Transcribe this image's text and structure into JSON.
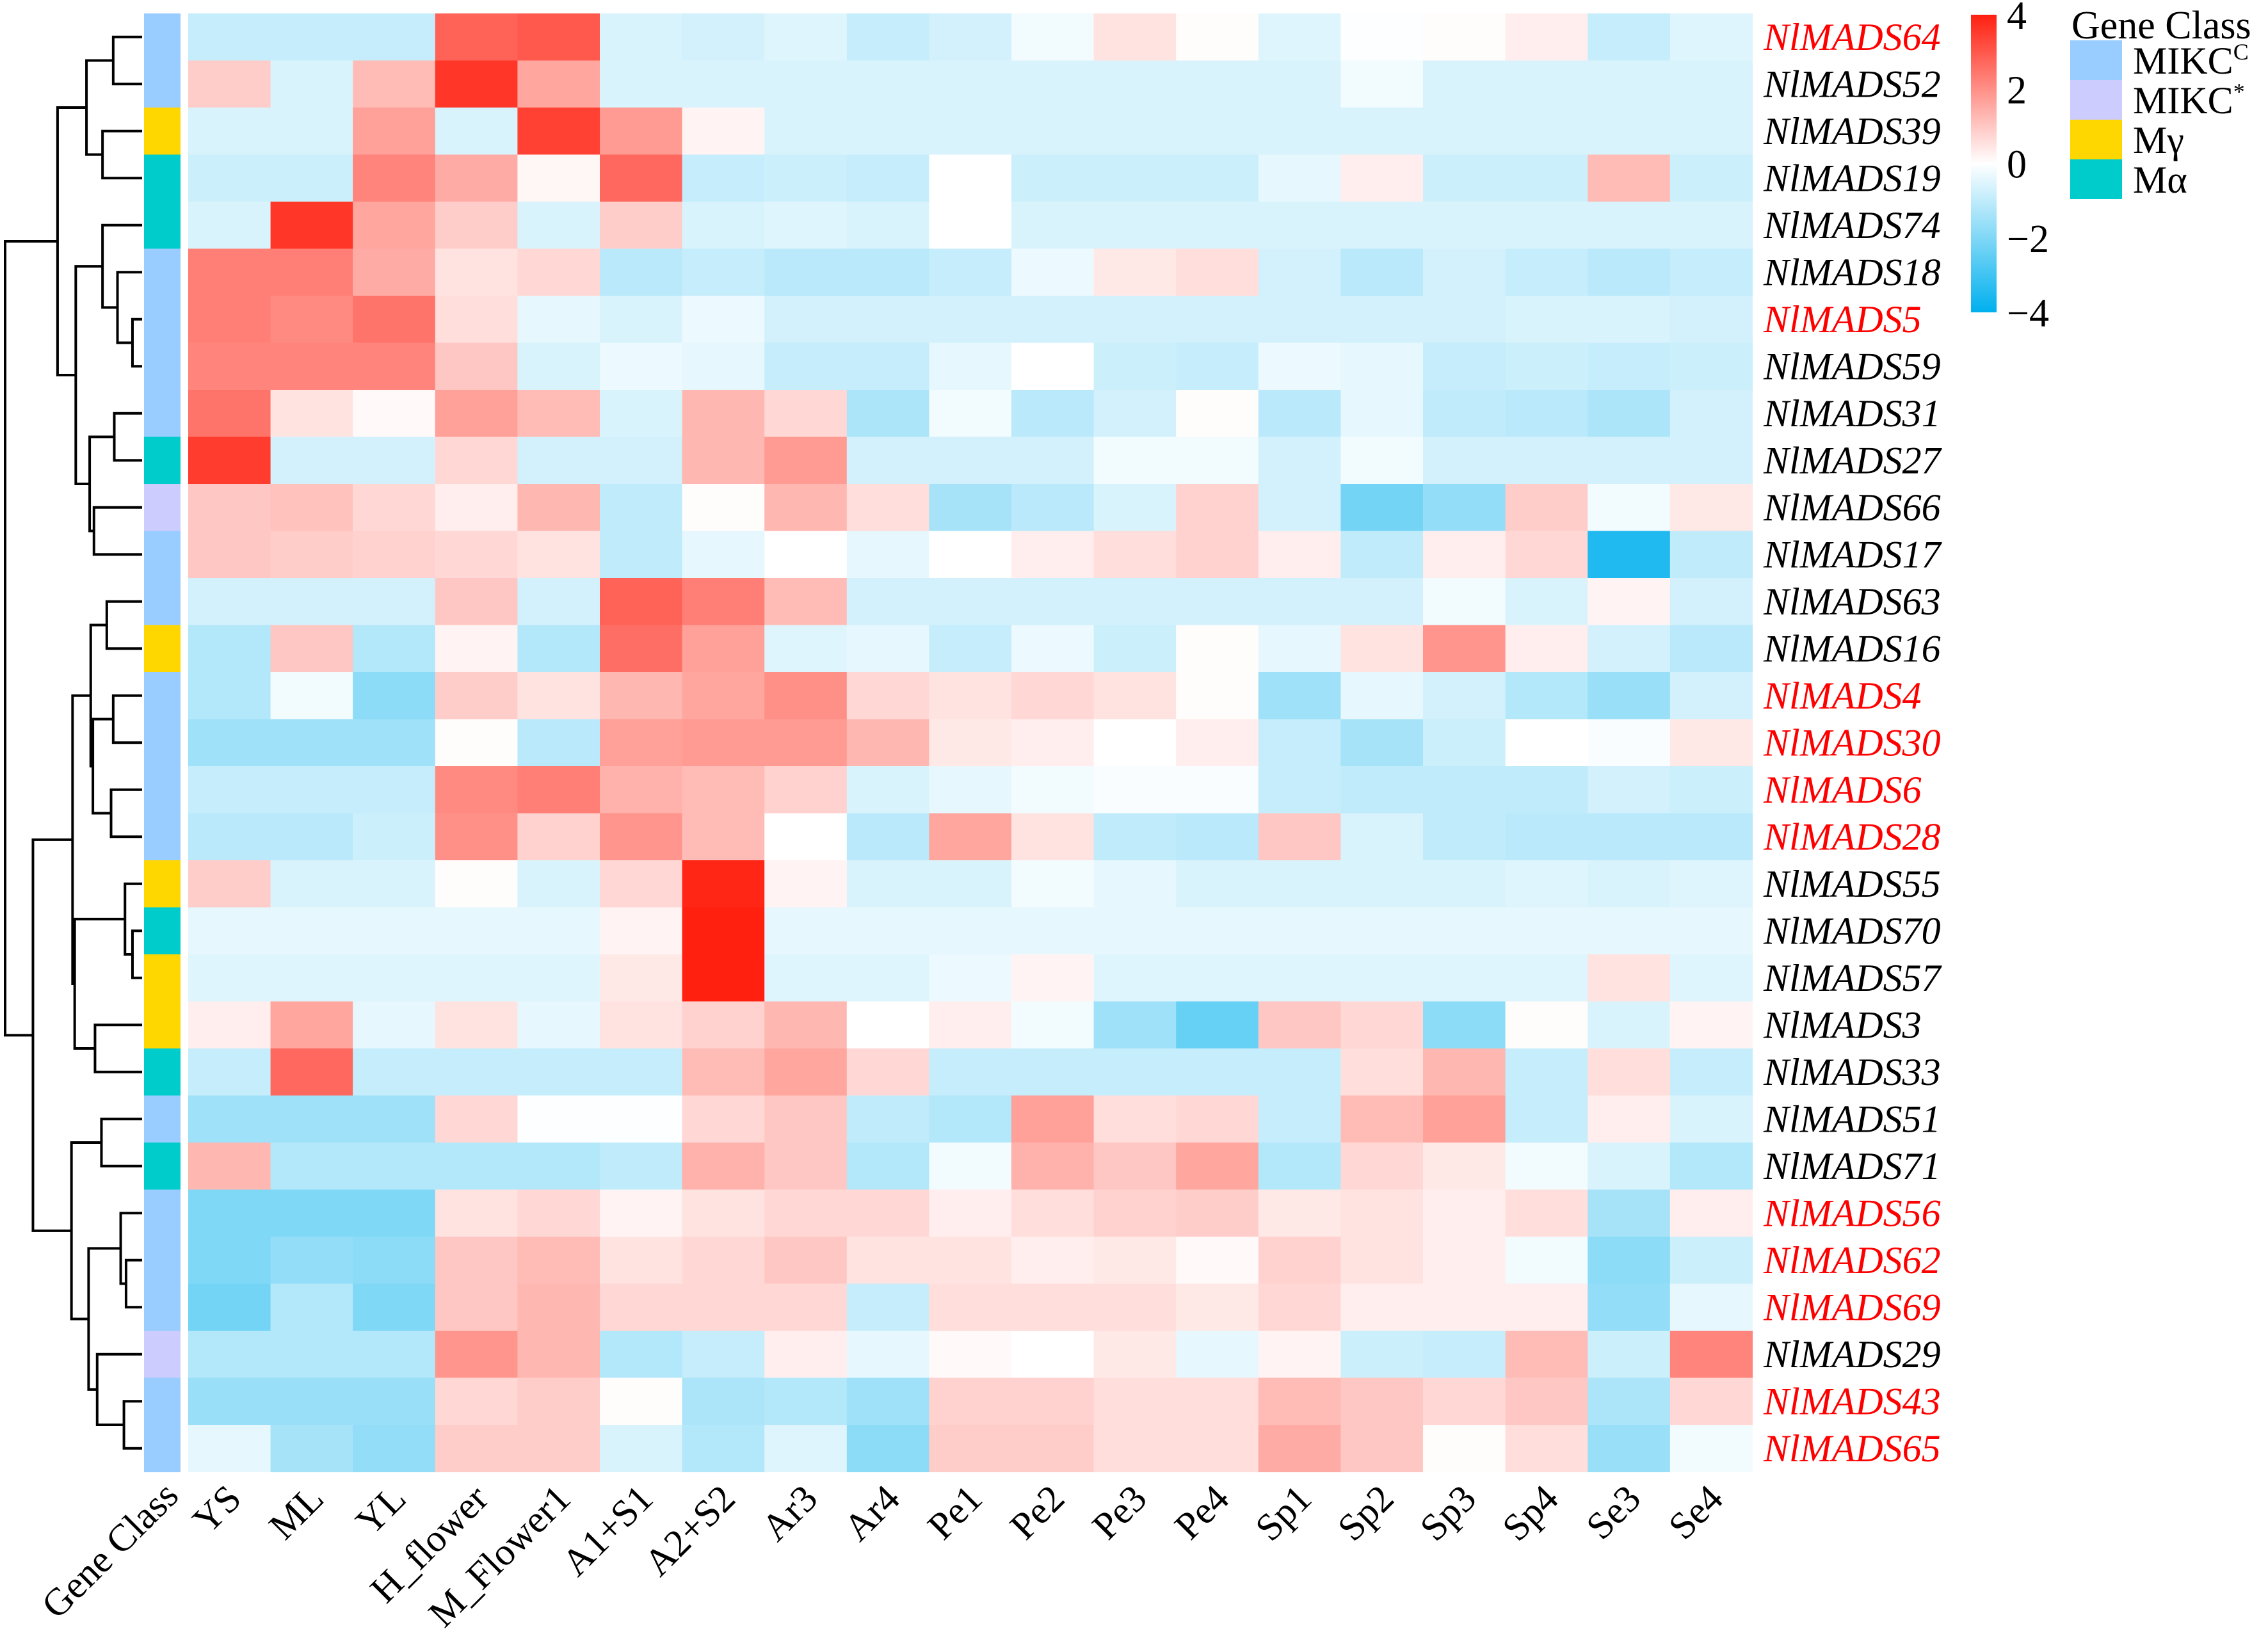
{
  "chart_data": {
    "type": "heatmap",
    "title": "",
    "columns": [
      "YS",
      "ML",
      "YL",
      "H_flower",
      "M_Flower1",
      "A1+S1",
      "A2+S2",
      "Ar3",
      "Ar4",
      "Pe1",
      "Pe2",
      "Pe3",
      "Pe4",
      "Sp1",
      "Sp2",
      "Sp3",
      "Sp4",
      "Se3",
      "Se4"
    ],
    "rows": [
      {
        "gene": "NlMADS64",
        "highlight": true,
        "class": "MIKCC",
        "values": [
          -0.9,
          -0.9,
          -0.9,
          2.8,
          3.0,
          -0.6,
          -0.7,
          -0.5,
          -0.9,
          -0.7,
          -0.2,
          0.5,
          0.05,
          -0.5,
          -0.05,
          0.05,
          0.3,
          -0.9,
          -0.5
        ]
      },
      {
        "gene": "NlMADS52",
        "highlight": false,
        "class": "MIKCC",
        "values": [
          0.9,
          -0.6,
          1.2,
          3.6,
          1.6,
          -0.6,
          -0.6,
          -0.6,
          -0.6,
          -0.6,
          -0.6,
          -0.6,
          -0.6,
          -0.6,
          -0.2,
          -0.6,
          -0.6,
          -0.6,
          -0.6
        ]
      },
      {
        "gene": "NlMADS39",
        "highlight": false,
        "class": "Mgamma",
        "values": [
          -0.6,
          -0.6,
          1.7,
          -0.6,
          3.4,
          1.8,
          0.2,
          -0.6,
          -0.6,
          -0.6,
          -0.6,
          -0.6,
          -0.6,
          -0.6,
          -0.6,
          -0.6,
          -0.6,
          -0.6,
          -0.6
        ]
      },
      {
        "gene": "NlMADS19",
        "highlight": false,
        "class": "Malpha",
        "values": [
          -0.8,
          -0.8,
          2.2,
          1.5,
          0.15,
          2.7,
          -0.9,
          -0.8,
          -0.9,
          0.0,
          -0.8,
          -0.8,
          -0.8,
          -0.4,
          0.3,
          -0.8,
          -0.8,
          1.2,
          -0.8
        ]
      },
      {
        "gene": "NlMADS74",
        "highlight": false,
        "class": "Malpha",
        "values": [
          -0.6,
          3.6,
          1.6,
          0.9,
          -0.6,
          0.9,
          -0.6,
          -0.5,
          -0.6,
          0.0,
          -0.6,
          -0.6,
          -0.6,
          -0.6,
          -0.6,
          -0.6,
          -0.6,
          -0.6,
          -0.6
        ]
      },
      {
        "gene": "NlMADS18",
        "highlight": false,
        "class": "MIKCC",
        "values": [
          2.3,
          2.3,
          1.5,
          0.5,
          0.7,
          -1.1,
          -0.9,
          -1.1,
          -1.1,
          -0.9,
          -0.3,
          0.4,
          0.6,
          -0.7,
          -1.1,
          -0.7,
          -0.9,
          -1.1,
          -0.9
        ]
      },
      {
        "gene": "NlMADS5",
        "highlight": true,
        "class": "MIKCC",
        "values": [
          2.3,
          2.1,
          2.5,
          0.6,
          -0.4,
          -0.6,
          -0.3,
          -0.7,
          -0.7,
          -0.7,
          -0.7,
          -0.7,
          -0.7,
          -0.7,
          -0.7,
          -0.7,
          -0.6,
          -0.6,
          -0.7
        ]
      },
      {
        "gene": "NlMADS59",
        "highlight": false,
        "class": "MIKCC",
        "values": [
          2.2,
          2.2,
          2.2,
          1.0,
          -0.6,
          -0.3,
          -0.4,
          -0.9,
          -0.9,
          -0.4,
          0.0,
          -0.8,
          -0.9,
          -0.3,
          -0.4,
          -0.9,
          -0.8,
          -0.9,
          -0.8
        ]
      },
      {
        "gene": "NlMADS31",
        "highlight": false,
        "class": "MIKCC",
        "values": [
          2.5,
          0.5,
          0.1,
          1.7,
          1.2,
          -0.6,
          1.3,
          0.7,
          -1.3,
          -0.2,
          -1.1,
          -0.7,
          0.05,
          -1.1,
          -0.4,
          -1.0,
          -1.1,
          -1.3,
          -0.7
        ]
      },
      {
        "gene": "NlMADS27",
        "highlight": false,
        "class": "Malpha",
        "values": [
          3.5,
          -0.7,
          -0.7,
          0.7,
          -0.7,
          -0.7,
          1.3,
          1.8,
          -0.7,
          -0.7,
          -0.7,
          -0.2,
          -0.2,
          -0.7,
          -0.2,
          -0.7,
          -0.7,
          -0.7,
          -0.7
        ]
      },
      {
        "gene": "NlMADS66",
        "highlight": false,
        "class": "MIKCstar",
        "values": [
          1.0,
          1.1,
          0.7,
          0.3,
          1.3,
          -1.0,
          0.05,
          1.3,
          0.6,
          -1.4,
          -1.1,
          -0.6,
          0.8,
          -0.7,
          -2.2,
          -1.7,
          0.9,
          -0.2,
          0.4
        ]
      },
      {
        "gene": "NlMADS17",
        "highlight": false,
        "class": "MIKCC",
        "values": [
          1.0,
          0.9,
          0.8,
          0.7,
          0.5,
          -1.0,
          -0.4,
          0.0,
          -0.4,
          0.0,
          0.3,
          0.6,
          0.8,
          0.3,
          -1.0,
          0.3,
          0.7,
          -3.5,
          -1.0
        ]
      },
      {
        "gene": "NlMADS63",
        "highlight": false,
        "class": "MIKCC",
        "values": [
          -0.7,
          -0.7,
          -0.7,
          1.0,
          -0.7,
          2.8,
          2.3,
          1.2,
          -0.7,
          -0.7,
          -0.7,
          -0.7,
          -0.7,
          -0.7,
          -0.7,
          -0.2,
          -0.6,
          0.2,
          -0.7
        ]
      },
      {
        "gene": "NlMADS16",
        "highlight": false,
        "class": "Mgamma",
        "values": [
          -1.2,
          1.0,
          -1.2,
          0.2,
          -1.2,
          2.6,
          1.7,
          -0.5,
          -0.4,
          -0.9,
          -0.3,
          -0.8,
          0.05,
          -0.4,
          0.5,
          1.9,
          0.3,
          -0.7,
          -1.1
        ]
      },
      {
        "gene": "NlMADS4",
        "highlight": true,
        "class": "MIKCC",
        "values": [
          -1.2,
          -0.2,
          -1.8,
          0.9,
          0.5,
          1.3,
          1.6,
          2.0,
          0.7,
          0.5,
          0.7,
          0.5,
          0.05,
          -1.5,
          -0.4,
          -0.7,
          -1.2,
          -1.6,
          -0.7
        ]
      },
      {
        "gene": "NlMADS30",
        "highlight": true,
        "class": "MIKCC",
        "values": [
          -1.5,
          -1.5,
          -1.5,
          0.05,
          -1.1,
          1.7,
          1.8,
          1.8,
          1.3,
          0.4,
          0.3,
          0.0,
          0.3,
          -0.9,
          -1.4,
          -0.8,
          0.0,
          -0.1,
          0.4
        ]
      },
      {
        "gene": "NlMADS6",
        "highlight": true,
        "class": "MIKCC",
        "values": [
          -0.9,
          -0.9,
          -0.9,
          2.1,
          2.3,
          1.4,
          1.2,
          0.8,
          -0.6,
          -0.4,
          -0.2,
          -0.1,
          -0.1,
          -0.9,
          -1.0,
          -1.0,
          -1.0,
          -0.7,
          -0.8
        ]
      },
      {
        "gene": "NlMADS28",
        "highlight": true,
        "class": "MIKCC",
        "values": [
          -1.1,
          -1.1,
          -0.8,
          2.0,
          0.8,
          1.9,
          1.2,
          0.0,
          -1.1,
          1.6,
          0.5,
          -1.0,
          -1.1,
          1.0,
          -0.6,
          -1.0,
          -1.1,
          -1.1,
          -1.1
        ]
      },
      {
        "gene": "NlMADS55",
        "highlight": false,
        "class": "Mgamma",
        "values": [
          0.9,
          -0.6,
          -0.6,
          0.05,
          -0.6,
          0.7,
          3.9,
          0.2,
          -0.6,
          -0.6,
          -0.2,
          -0.4,
          -0.6,
          -0.6,
          -0.6,
          -0.6,
          -0.5,
          -0.6,
          -0.5
        ]
      },
      {
        "gene": "NlMADS70",
        "highlight": false,
        "class": "Malpha",
        "values": [
          -0.4,
          -0.4,
          -0.4,
          -0.4,
          -0.4,
          0.2,
          4.0,
          -0.4,
          -0.4,
          -0.4,
          -0.4,
          -0.4,
          -0.4,
          -0.4,
          -0.4,
          -0.4,
          -0.4,
          -0.4,
          -0.4
        ]
      },
      {
        "gene": "NlMADS57",
        "highlight": false,
        "class": "Mgamma",
        "values": [
          -0.5,
          -0.5,
          -0.5,
          -0.5,
          -0.5,
          0.4,
          4.0,
          -0.5,
          -0.5,
          -0.3,
          0.2,
          -0.5,
          -0.5,
          -0.5,
          -0.5,
          -0.5,
          -0.5,
          0.5,
          -0.5
        ]
      },
      {
        "gene": "NlMADS3",
        "highlight": false,
        "class": "Mgamma",
        "values": [
          0.3,
          1.6,
          -0.4,
          0.5,
          -0.4,
          0.5,
          0.8,
          1.3,
          0.0,
          0.3,
          -0.2,
          -1.5,
          -2.4,
          1.0,
          0.7,
          -1.8,
          0.05,
          -0.6,
          0.2
        ]
      },
      {
        "gene": "NlMADS33",
        "highlight": false,
        "class": "Malpha",
        "values": [
          -0.9,
          2.7,
          -0.9,
          -0.9,
          -0.9,
          -0.9,
          1.2,
          1.6,
          0.7,
          -0.9,
          -0.9,
          -0.9,
          -0.9,
          -0.9,
          0.6,
          1.3,
          -0.9,
          0.6,
          -0.9
        ]
      },
      {
        "gene": "NlMADS51",
        "highlight": false,
        "class": "MIKCC",
        "values": [
          -1.5,
          -1.5,
          -1.5,
          0.7,
          -0.05,
          -0.05,
          0.7,
          1.0,
          -1.0,
          -1.2,
          1.7,
          0.6,
          0.7,
          -0.9,
          1.2,
          1.7,
          -0.9,
          0.3,
          -0.6
        ]
      },
      {
        "gene": "NlMADS71",
        "highlight": false,
        "class": "Malpha",
        "values": [
          1.3,
          -1.2,
          -1.2,
          -1.2,
          -1.2,
          -1.0,
          1.4,
          1.0,
          -1.2,
          -0.2,
          1.4,
          1.0,
          1.6,
          -1.2,
          0.7,
          0.4,
          -0.2,
          -0.6,
          -1.2
        ]
      },
      {
        "gene": "NlMADS56",
        "highlight": true,
        "class": "MIKCC",
        "values": [
          -2.0,
          -2.0,
          -2.0,
          0.5,
          0.7,
          0.2,
          0.5,
          0.7,
          0.7,
          0.3,
          0.6,
          0.8,
          0.9,
          0.4,
          0.5,
          0.3,
          0.6,
          -1.4,
          0.3
        ]
      },
      {
        "gene": "NlMADS62",
        "highlight": true,
        "class": "MIKCC",
        "values": [
          -2.0,
          -1.7,
          -1.8,
          1.0,
          1.2,
          0.5,
          0.7,
          1.0,
          0.5,
          0.5,
          0.3,
          0.4,
          0.1,
          0.8,
          0.5,
          0.3,
          -0.2,
          -1.8,
          -0.8
        ]
      },
      {
        "gene": "NlMADS69",
        "highlight": true,
        "class": "MIKCC",
        "values": [
          -2.2,
          -1.2,
          -2.0,
          1.0,
          1.3,
          0.7,
          0.7,
          0.7,
          -0.9,
          0.6,
          0.6,
          0.6,
          0.4,
          0.7,
          0.3,
          0.3,
          0.3,
          -1.7,
          -0.4
        ]
      },
      {
        "gene": "NlMADS29",
        "highlight": false,
        "class": "MIKCstar",
        "values": [
          -1.2,
          -1.2,
          -1.2,
          1.9,
          1.3,
          -1.2,
          -0.9,
          0.3,
          -0.4,
          0.1,
          0.0,
          0.4,
          -0.4,
          0.2,
          -0.8,
          -0.9,
          1.2,
          -0.8,
          2.2
        ]
      },
      {
        "gene": "NlMADS43",
        "highlight": true,
        "class": "MIKCC",
        "values": [
          -1.6,
          -1.6,
          -1.6,
          0.7,
          0.9,
          0.05,
          -1.3,
          -1.2,
          -1.5,
          0.8,
          0.8,
          0.6,
          0.6,
          1.2,
          1.0,
          0.7,
          1.0,
          -1.3,
          0.7
        ]
      },
      {
        "gene": "NlMADS65",
        "highlight": true,
        "class": "MIKCC",
        "values": [
          -0.4,
          -1.4,
          -1.7,
          0.9,
          0.9,
          -0.6,
          -1.2,
          -0.5,
          -1.8,
          0.9,
          0.9,
          0.6,
          0.6,
          1.5,
          1.0,
          0.05,
          0.6,
          -1.6,
          -0.2
        ]
      }
    ],
    "annotation_label": "Gene Class",
    "color_scale": {
      "range": [
        -4,
        4
      ],
      "ticks": [
        "4",
        "2",
        "0",
        "−2",
        "−4"
      ],
      "tick_values": [
        4,
        2,
        0,
        -2,
        -4
      ],
      "high_color": "#FF2010",
      "mid_color": "#FFFFFF",
      "low_color": "#00B0EE"
    },
    "legend": {
      "title": "Gene Class",
      "placement": "right",
      "items": [
        {
          "key": "MIKCC",
          "label": "MIKC",
          "sup": "C",
          "color": "#99CCFF"
        },
        {
          "key": "MIKCstar",
          "label": "MIKC",
          "sup": "*",
          "color": "#CCCCFF"
        },
        {
          "key": "Mgamma",
          "label": "Mγ",
          "sup": "",
          "color": "#FFD700"
        },
        {
          "key": "Malpha",
          "label": "Mα",
          "sup": "",
          "color": "#00CCCC"
        }
      ]
    },
    "row_dendrogram": true,
    "highlight_color": "#FF0000"
  }
}
